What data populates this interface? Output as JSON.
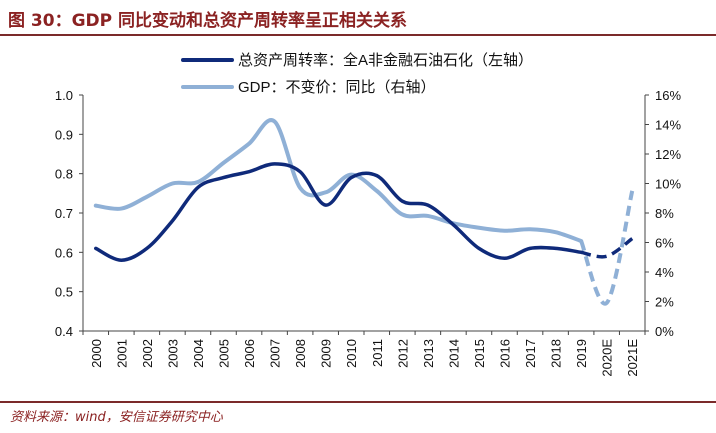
{
  "header": {
    "title": "图 30：GDP 同比变动和总资产周转率呈正相关关系"
  },
  "footer": {
    "source": "资料来源：wind，安信证券研究中心"
  },
  "chart_data": {
    "type": "line",
    "categories": [
      "2000",
      "2001",
      "2002",
      "2003",
      "2004",
      "2005",
      "2006",
      "2007",
      "2008",
      "2009",
      "2010",
      "2011",
      "2012",
      "2013",
      "2014",
      "2015",
      "2016",
      "2017",
      "2018",
      "2019",
      "2020E",
      "2021E"
    ],
    "y_left": {
      "ticks": [
        "0.4",
        "0.5",
        "0.6",
        "0.7",
        "0.8",
        "0.9",
        "1.0"
      ],
      "ylim": [
        0.4,
        1.0
      ]
    },
    "y_right": {
      "ticks": [
        "0%",
        "2%",
        "4%",
        "6%",
        "8%",
        "10%",
        "12%",
        "14%",
        "16%"
      ],
      "ylim": [
        0,
        16
      ]
    },
    "series": [
      {
        "name": "总资产周转率：全A非金融石油石化（左轴）",
        "axis": "left",
        "color": "#0f2a7a",
        "values": [
          0.61,
          0.58,
          0.61,
          0.68,
          0.765,
          0.79,
          0.805,
          0.825,
          0.805,
          0.72,
          0.79,
          0.795,
          0.73,
          0.72,
          0.67,
          0.61,
          0.585,
          0.61,
          0.61,
          0.6,
          0.59,
          0.635
        ],
        "dashed_from_index": 19
      },
      {
        "name": "GDP：不变价：同比（右轴）",
        "axis": "right",
        "color": "#8fb0d6",
        "values": [
          8.5,
          8.3,
          9.1,
          10.0,
          10.1,
          11.4,
          12.7,
          14.2,
          9.7,
          9.4,
          10.6,
          9.5,
          7.9,
          7.8,
          7.3,
          7.0,
          6.8,
          6.9,
          6.7,
          6.1,
          1.9,
          9.5
        ],
        "dashed_from_index": 19
      }
    ]
  }
}
